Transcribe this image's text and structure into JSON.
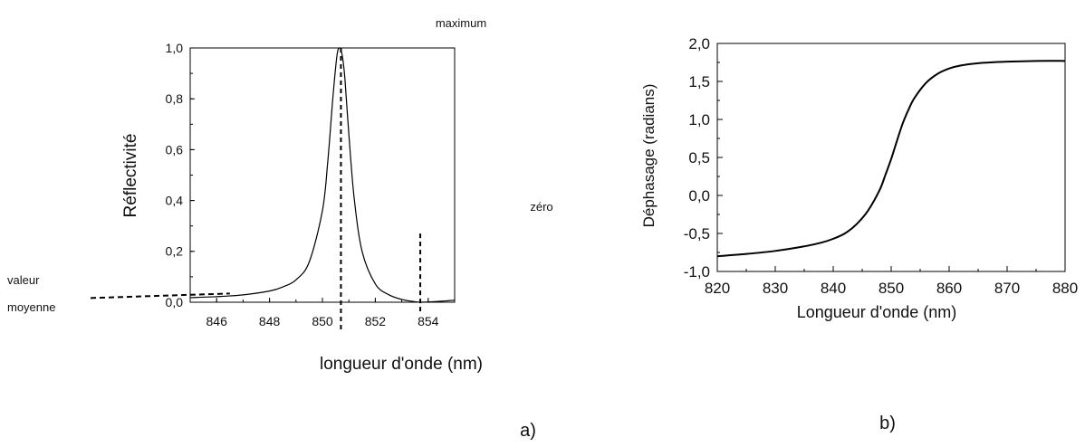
{
  "chart_data": [
    {
      "type": "line",
      "panel_label": "a)",
      "xlabel": "longueur d'onde (nm)",
      "ylabel": "Réflectivité",
      "xlim": [
        845,
        855
      ],
      "ylim": [
        0,
        1.0
      ],
      "x_ticks": [
        846,
        848,
        850,
        852,
        854
      ],
      "x_tick_labels": [
        "846",
        "848",
        "850",
        "852",
        "854"
      ],
      "y_ticks": [
        0,
        0.2,
        0.4,
        0.6,
        0.8,
        1.0
      ],
      "y_tick_labels": [
        "0,0",
        "0,2",
        "0,4",
        "0,6",
        "0,8",
        "1,0"
      ],
      "series": [
        {
          "x": [
            845.0,
            846.0,
            847.0,
            848.0,
            848.5,
            849.0,
            849.5,
            850.0,
            850.2,
            850.4,
            850.55,
            850.65,
            850.75,
            850.85,
            851.0,
            851.2,
            851.5,
            852.0,
            852.5,
            853.0,
            853.5,
            853.7,
            854.0,
            854.5,
            855.0
          ],
          "y": [
            0.018,
            0.022,
            0.029,
            0.044,
            0.06,
            0.088,
            0.158,
            0.36,
            0.55,
            0.81,
            0.97,
            1.0,
            0.97,
            0.88,
            0.66,
            0.41,
            0.2,
            0.072,
            0.03,
            0.011,
            0.002,
            0.0,
            0.001,
            0.004,
            0.008
          ]
        }
      ],
      "annotations": {
        "maximum": {
          "text": "maximum",
          "x": 850.7,
          "y": 1.0
        },
        "zero": {
          "text": "zéro",
          "x": 853.7,
          "y": 0.0
        },
        "mean_line1": {
          "text": "valeur",
          "y": 0.02
        },
        "mean_line2": {
          "text": "moyenne"
        }
      },
      "grid": false
    },
    {
      "type": "line",
      "panel_label": "b)",
      "xlabel": "Longueur d'onde (nm)",
      "ylabel": "Déphasage (radians)",
      "xlim": [
        820,
        880
      ],
      "ylim": [
        -1.0,
        2.0
      ],
      "x_ticks": [
        820,
        830,
        840,
        850,
        860,
        870,
        880
      ],
      "x_tick_labels": [
        "820",
        "830",
        "840",
        "850",
        "860",
        "870",
        "880"
      ],
      "y_ticks": [
        -1.0,
        -0.5,
        0.0,
        0.5,
        1.0,
        1.5,
        2.0
      ],
      "y_tick_labels": [
        "-1,0",
        "-0,5",
        "0,0",
        "0,5",
        "1,0",
        "1,5",
        "2,0"
      ],
      "series": [
        {
          "x": [
            820,
            825,
            830,
            835,
            838,
            840,
            842,
            844,
            846,
            848,
            849,
            850,
            851,
            852,
            853,
            854,
            856,
            858,
            860,
            862,
            865,
            870,
            875,
            880
          ],
          "y": [
            -0.8,
            -0.77,
            -0.73,
            -0.67,
            -0.62,
            -0.57,
            -0.5,
            -0.38,
            -0.2,
            0.07,
            0.27,
            0.48,
            0.72,
            0.95,
            1.13,
            1.28,
            1.48,
            1.6,
            1.67,
            1.71,
            1.74,
            1.76,
            1.77,
            1.77
          ]
        }
      ],
      "grid": false
    }
  ]
}
